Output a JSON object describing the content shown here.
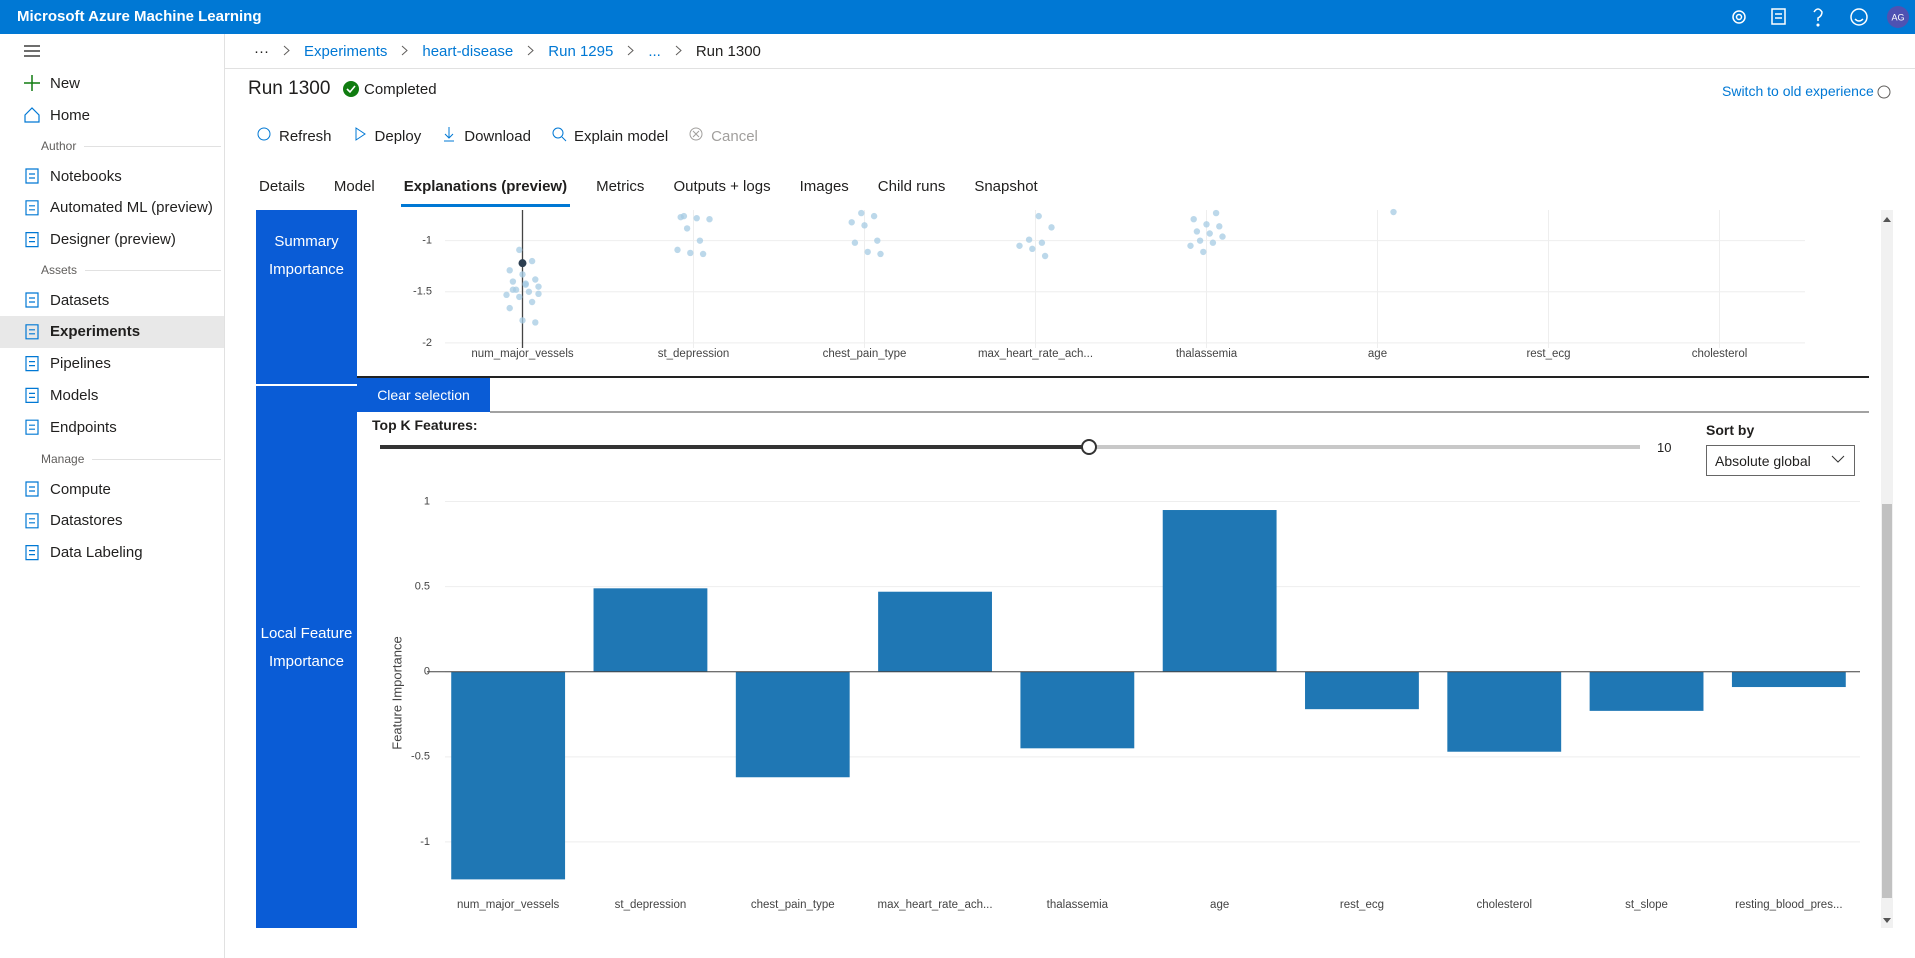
{
  "header": {
    "title": "Microsoft Azure Machine Learning",
    "avatar": "AG"
  },
  "sidebar": {
    "top": [
      "New",
      "Home"
    ],
    "groups": [
      {
        "title": "Author",
        "items": [
          "Notebooks",
          "Automated ML (preview)",
          "Designer (preview)"
        ]
      },
      {
        "title": "Assets",
        "items": [
          "Datasets",
          "Experiments",
          "Pipelines",
          "Models",
          "Endpoints"
        ]
      },
      {
        "title": "Manage",
        "items": [
          "Compute",
          "Datastores",
          "Data Labeling"
        ]
      }
    ]
  },
  "breadcrumb": [
    "···",
    "Experiments",
    "heart-disease",
    "Run 1295",
    "...",
    "Run 1300"
  ],
  "run": {
    "title": "Run 1300",
    "status": "Completed",
    "switch_link": "Switch to old experience"
  },
  "toolbar": [
    "Refresh",
    "Deploy",
    "Download",
    "Explain model",
    "Cancel"
  ],
  "tabs": [
    "Details",
    "Model",
    "Explanations (preview)",
    "Metrics",
    "Outputs + logs",
    "Images",
    "Child runs",
    "Snapshot"
  ],
  "panels": {
    "summary": "Summary Importance",
    "local": "Local Feature Importance",
    "clear_selection": "Clear selection",
    "top_k_label": "Top K Features:",
    "top_k_value": 10,
    "sort_label": "Sort by",
    "sort_value": "Absolute global"
  },
  "chart_data": [
    {
      "type": "scatter",
      "categories": [
        "num_major_vessels",
        "st_depression",
        "chest_pain_type",
        "max_heart_rate_ach...",
        "thalassemia",
        "age",
        "rest_ecg",
        "cholesterol"
      ],
      "values": [
        [
          -1.22,
          -1.09,
          -1.2,
          -1.29,
          -1.33,
          -1.38,
          -1.4,
          -1.43,
          -1.45,
          -1.48,
          -1.5,
          -1.53,
          -1.55,
          -1.6,
          -1.66,
          -1.78,
          -1.8,
          -1.48,
          -1.42,
          -1.52
        ],
        [
          -0.76,
          -0.78,
          -0.79,
          -0.88,
          -1,
          -1.09,
          -1.12,
          -1.13,
          -0.77
        ],
        [
          -0.73,
          -0.76,
          -0.82,
          -0.85,
          -1,
          -1.02,
          -1.11,
          -1.13
        ],
        [
          -0.76,
          -0.87,
          -0.99,
          -1.02,
          -1.05,
          -1.08,
          -1.15
        ],
        [
          -0.73,
          -0.79,
          -0.84,
          -0.86,
          -0.91,
          -0.93,
          -0.96,
          -1,
          -1.02,
          -1.05,
          -1.11
        ],
        [
          -0.72
        ],
        [],
        []
      ],
      "color": "#a6cbe3",
      "ylim": [
        -2.05,
        -0.7
      ],
      "yticks": [
        -1,
        -1.5,
        -2
      ],
      "grid": true
    },
    {
      "type": "bar",
      "y_label": "Feature Importance",
      "categories": [
        "num_major_vessels",
        "st_depression",
        "chest_pain_type",
        "max_heart_rate_ach...",
        "thalassemia",
        "age",
        "rest_ecg",
        "cholesterol",
        "st_slope",
        "resting_blood_pres..."
      ],
      "values": [
        -1.22,
        0.49,
        -0.62,
        0.47,
        -0.45,
        0.95,
        -0.22,
        -0.47,
        -0.23,
        -0.09
      ],
      "color": "#1f77b4",
      "ylim": [
        -1.3,
        1.05
      ],
      "yticks": [
        -1,
        -0.5,
        0,
        0.5,
        1
      ],
      "grid": true
    }
  ]
}
